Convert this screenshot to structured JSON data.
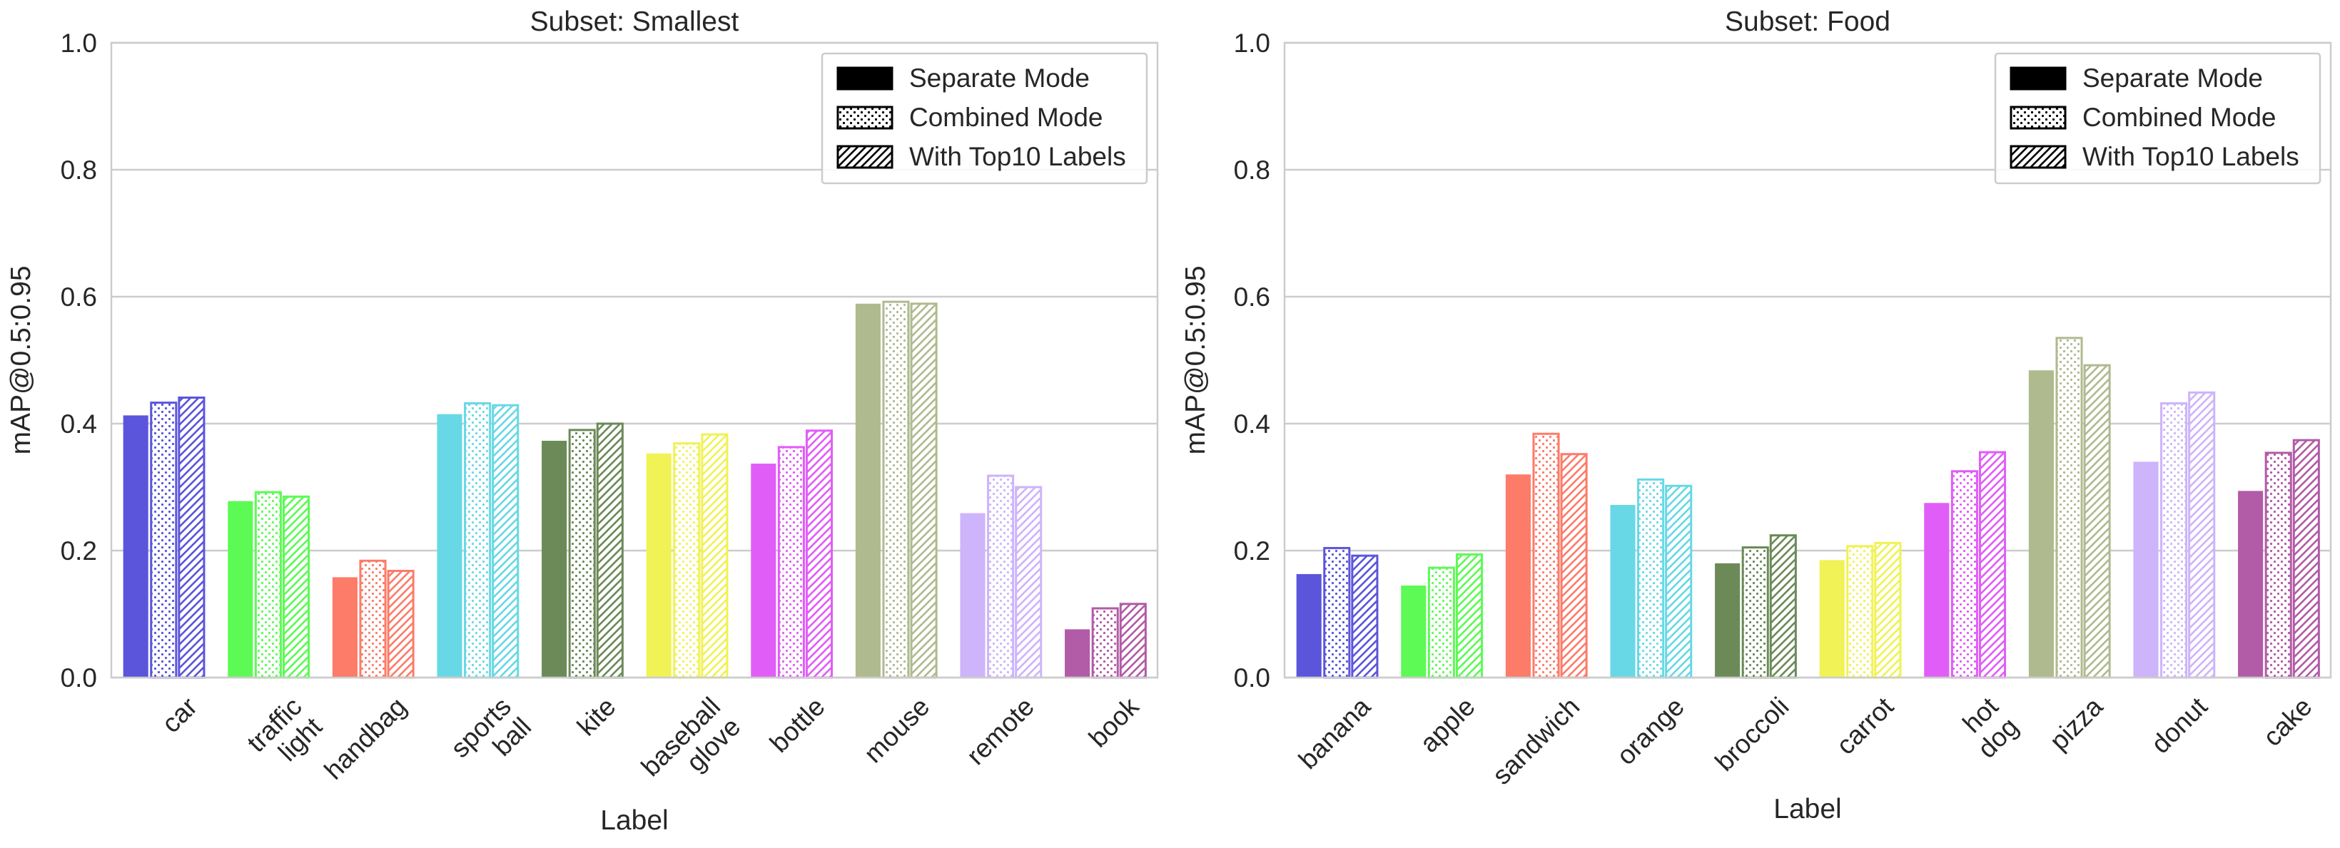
{
  "legend_labels": [
    "Separate Mode",
    "Combined Mode",
    "With Top10 Labels"
  ],
  "chart_data": [
    {
      "type": "bar",
      "title": "Subset: Smallest",
      "xlabel": "Label",
      "ylabel": "mAP@0.5:0.95",
      "ylim": [
        0,
        1.0
      ],
      "yticks": [
        "0.0",
        "0.2",
        "0.4",
        "0.6",
        "0.8",
        "1.0"
      ],
      "grid": true,
      "legend_position": "top-right",
      "categories": [
        [
          "car"
        ],
        [
          "traffic",
          "light"
        ],
        [
          "handbag"
        ],
        [
          "sports",
          "ball"
        ],
        [
          "kite"
        ],
        [
          "baseball",
          "glove"
        ],
        [
          "bottle"
        ],
        [
          "mouse"
        ],
        [
          "remote"
        ],
        [
          "book"
        ]
      ],
      "colors": [
        "#5b55dc",
        "#5dfa55",
        "#fd7b69",
        "#68d8e6",
        "#6b8a58",
        "#f0f255",
        "#e15df8",
        "#afba8f",
        "#cdb4fb",
        "#b25ba7"
      ],
      "series": [
        {
          "name": "Separate Mode",
          "values": [
            0.413,
            0.278,
            0.158,
            0.415,
            0.373,
            0.353,
            0.337,
            0.589,
            0.259,
            0.076
          ]
        },
        {
          "name": "Combined Mode",
          "values": [
            0.433,
            0.292,
            0.184,
            0.432,
            0.39,
            0.369,
            0.363,
            0.592,
            0.318,
            0.109
          ]
        },
        {
          "name": "With Top10 Labels",
          "values": [
            0.441,
            0.285,
            0.168,
            0.429,
            0.4,
            0.383,
            0.389,
            0.589,
            0.3,
            0.116
          ]
        }
      ]
    },
    {
      "type": "bar",
      "title": "Subset: Food",
      "xlabel": "Label",
      "ylabel": "mAP@0.5:0.95",
      "ylim": [
        0,
        1.0
      ],
      "yticks": [
        "0.0",
        "0.2",
        "0.4",
        "0.6",
        "0.8",
        "1.0"
      ],
      "grid": true,
      "legend_position": "top-right",
      "categories": [
        [
          "banana"
        ],
        [
          "apple"
        ],
        [
          "sandwich"
        ],
        [
          "orange"
        ],
        [
          "broccoli"
        ],
        [
          "carrot"
        ],
        [
          "hot",
          "dog"
        ],
        [
          "pizza"
        ],
        [
          "donut"
        ],
        [
          "cake"
        ]
      ],
      "colors": [
        "#5b55dc",
        "#5dfa55",
        "#fd7b69",
        "#68d8e6",
        "#6b8a58",
        "#f0f255",
        "#e15df8",
        "#afba8f",
        "#cdb4fb",
        "#b25ba7"
      ],
      "series": [
        {
          "name": "Separate Mode",
          "values": [
            0.163,
            0.145,
            0.32,
            0.272,
            0.18,
            0.185,
            0.275,
            0.484,
            0.34,
            0.294
          ]
        },
        {
          "name": "Combined Mode",
          "values": [
            0.204,
            0.173,
            0.384,
            0.312,
            0.205,
            0.207,
            0.325,
            0.535,
            0.432,
            0.354
          ]
        },
        {
          "name": "With Top10 Labels",
          "values": [
            0.192,
            0.194,
            0.352,
            0.302,
            0.224,
            0.212,
            0.355,
            0.492,
            0.449,
            0.374
          ]
        }
      ]
    }
  ]
}
